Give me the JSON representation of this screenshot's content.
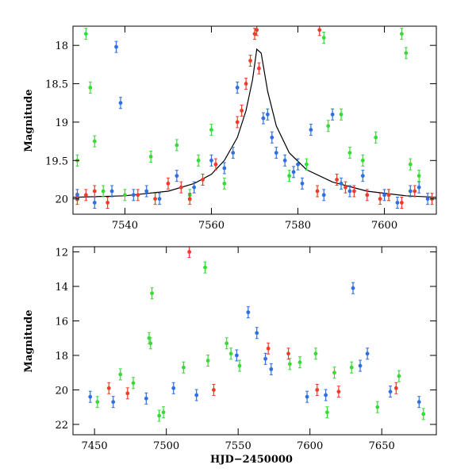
{
  "chart_data": [
    {
      "type": "scatter",
      "panel": "top",
      "xlabel": "",
      "ylabel": "Magnitude",
      "xlim": [
        7528,
        7612
      ],
      "ylim": [
        20.2,
        17.75
      ],
      "y_inverted": true,
      "xticks": [
        7540,
        7560,
        7580,
        7600
      ],
      "xtick_labels": [
        "7540",
        "7560",
        "7580",
        "7600"
      ],
      "yticks": [
        18,
        18.5,
        19,
        19.5,
        20
      ],
      "ytick_labels": [
        "18",
        "18.5",
        "19",
        "19.5",
        "20"
      ],
      "legend": "none",
      "grid": false,
      "model_curve": {
        "color": "#000000",
        "x": [
          7528,
          7540,
          7550,
          7556,
          7560,
          7563,
          7566,
          7568,
          7569.5,
          7570.5,
          7571.5,
          7573,
          7575,
          7578,
          7582,
          7588,
          7596,
          7605,
          7612
        ],
        "y": [
          19.98,
          19.96,
          19.9,
          19.8,
          19.68,
          19.5,
          19.2,
          18.85,
          18.45,
          18.05,
          18.1,
          18.6,
          19.05,
          19.4,
          19.62,
          19.78,
          19.9,
          19.96,
          19.98
        ]
      },
      "series": [
        {
          "color": "#2f6fe0",
          "x": [
            7529,
            7533,
            7537,
            7538,
            7539,
            7542,
            7545,
            7548,
            7552,
            7556,
            7560,
            7563,
            7565,
            7566,
            7572,
            7573,
            7574,
            7575,
            7577,
            7579,
            7580,
            7581,
            7583,
            7586,
            7588,
            7590,
            7592,
            7595,
            7600,
            7603,
            7606,
            7608,
            7610
          ],
          "y": [
            19.95,
            20.05,
            19.9,
            18.02,
            18.75,
            19.95,
            19.9,
            20.0,
            19.7,
            19.85,
            19.5,
            19.6,
            19.4,
            18.55,
            18.95,
            18.9,
            19.2,
            19.4,
            19.5,
            19.65,
            19.55,
            19.8,
            19.1,
            19.95,
            18.9,
            19.8,
            19.9,
            19.7,
            19.95,
            20.05,
            19.9,
            19.85,
            20.0
          ]
        },
        {
          "color": "#3ad93a",
          "x": [
            7529,
            7531,
            7532,
            7533,
            7535,
            7540,
            7546,
            7552,
            7555,
            7557,
            7560,
            7563,
            7578,
            7582,
            7586,
            7587,
            7590,
            7592,
            7595,
            7598,
            7601,
            7604,
            7605,
            7606,
            7608
          ],
          "y": [
            19.5,
            17.85,
            18.55,
            19.25,
            19.9,
            19.95,
            19.45,
            19.3,
            19.95,
            19.5,
            19.1,
            19.8,
            19.7,
            19.55,
            17.9,
            19.05,
            18.9,
            19.4,
            19.5,
            19.2,
            19.95,
            17.85,
            18.1,
            19.55,
            19.7
          ]
        },
        {
          "color": "#ee3b2a",
          "x": [
            7529,
            7531,
            7533,
            7536,
            7543,
            7547,
            7550,
            7553,
            7555,
            7558,
            7561,
            7566,
            7567,
            7568,
            7569,
            7570,
            7570.5,
            7571,
            7585,
            7584.5,
            7589,
            7591,
            7593,
            7596,
            7599,
            7601,
            7604,
            7607,
            7611
          ],
          "y": [
            20.0,
            19.95,
            19.9,
            20.05,
            19.95,
            20.0,
            19.8,
            19.85,
            20.0,
            19.75,
            19.55,
            19.0,
            18.85,
            18.5,
            18.2,
            17.85,
            17.8,
            18.3,
            17.8,
            19.9,
            19.75,
            19.85,
            19.9,
            19.95,
            20.0,
            19.95,
            20.05,
            19.9,
            20.0
          ]
        }
      ]
    },
    {
      "type": "scatter",
      "panel": "bottom",
      "xlabel": "HJD−2450000",
      "ylabel": "Magnitude",
      "xlim": [
        7435,
        7688
      ],
      "ylim": [
        22.6,
        11.7
      ],
      "y_inverted": true,
      "xticks": [
        7450,
        7500,
        7550,
        7600,
        7650
      ],
      "xtick_labels": [
        "7450",
        "7500",
        "7550",
        "7600",
        "7650"
      ],
      "yticks": [
        12,
        14,
        16,
        18,
        20,
        22
      ],
      "ytick_labels": [
        "12",
        "14",
        "16",
        "18",
        "20",
        "22"
      ],
      "legend": "none",
      "grid": false,
      "series": [
        {
          "color": "#2f6fe0",
          "x": [
            7447,
            7463,
            7486,
            7505,
            7521,
            7549,
            7557,
            7563,
            7569,
            7573,
            7598,
            7611,
            7630,
            7635,
            7640,
            7656,
            7676
          ],
          "y": [
            20.4,
            20.7,
            20.5,
            19.9,
            20.3,
            18.0,
            15.5,
            16.7,
            18.2,
            18.8,
            20.4,
            20.3,
            14.1,
            18.6,
            17.9,
            20.1,
            20.7
          ]
        },
        {
          "color": "#3ad93a",
          "x": [
            7452,
            7468,
            7477,
            7488,
            7489,
            7490,
            7495,
            7498,
            7512,
            7527,
            7529,
            7542,
            7545,
            7551,
            7586,
            7593,
            7604,
            7612,
            7617,
            7629,
            7647,
            7662,
            7679
          ],
          "y": [
            20.7,
            19.1,
            19.6,
            17.0,
            17.3,
            14.4,
            21.5,
            21.3,
            18.7,
            12.9,
            18.3,
            17.3,
            17.9,
            18.6,
            18.5,
            18.4,
            17.9,
            21.3,
            19.0,
            18.7,
            21.0,
            19.2,
            21.4
          ]
        },
        {
          "color": "#ee3b2a",
          "x": [
            7460,
            7473,
            7516,
            7533,
            7571,
            7585,
            7605,
            7620,
            7660
          ],
          "y": [
            19.9,
            20.2,
            12.0,
            20.0,
            17.6,
            17.9,
            20.0,
            20.1,
            19.9
          ]
        }
      ]
    }
  ]
}
